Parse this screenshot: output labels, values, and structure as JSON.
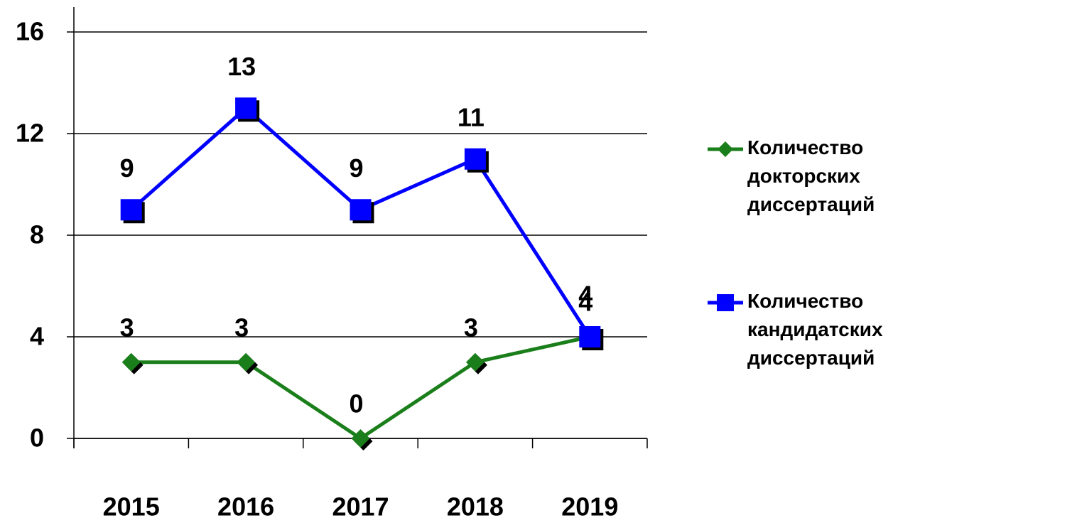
{
  "chart_data": {
    "type": "line",
    "categories": [
      "2015",
      "2016",
      "2017",
      "2018",
      "2019"
    ],
    "series": [
      {
        "name": "Количество докторских диссертаций",
        "color": "#1a7f1a",
        "marker": "diamond",
        "values": [
          3,
          3,
          0,
          3,
          4
        ]
      },
      {
        "name": "Количество кандидатских диссертаций",
        "color": "#0000ff",
        "marker": "square",
        "values": [
          9,
          13,
          9,
          11,
          4
        ]
      }
    ],
    "ylim": [
      0,
      16
    ],
    "yticks": [
      0,
      4,
      8,
      12,
      16
    ],
    "grid": true,
    "legend": "right"
  }
}
